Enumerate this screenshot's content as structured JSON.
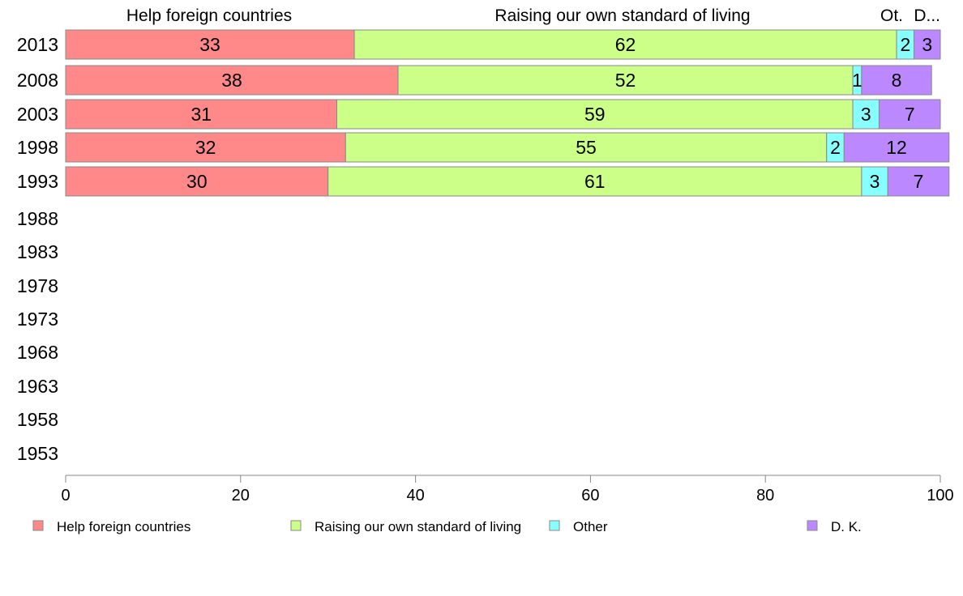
{
  "chart_data": {
    "type": "bar",
    "orientation": "horizontal",
    "stacked": true,
    "column_headers": [
      "Help foreign countries",
      "Raising our own standard of living",
      "Ot.",
      "D..."
    ],
    "categories": [
      "2013",
      "2008",
      "2003",
      "1998",
      "1993",
      "1988",
      "1983",
      "1978",
      "1973",
      "1968",
      "1963",
      "1958",
      "1953"
    ],
    "series": [
      {
        "name": "Help foreign countries",
        "color": "#ff8888",
        "values": [
          33,
          38,
          31,
          32,
          30,
          null,
          null,
          null,
          null,
          null,
          null,
          null,
          null
        ]
      },
      {
        "name": "Raising our own standard of living",
        "color": "#ccff88",
        "values": [
          62,
          52,
          59,
          55,
          61,
          null,
          null,
          null,
          null,
          null,
          null,
          null,
          null
        ]
      },
      {
        "name": "Other",
        "color": "#88ffff",
        "values": [
          2,
          1,
          3,
          2,
          3,
          null,
          null,
          null,
          null,
          null,
          null,
          null,
          null
        ]
      },
      {
        "name": "D. K.",
        "color": "#bb88ff",
        "values": [
          3,
          8,
          7,
          12,
          7,
          null,
          null,
          null,
          null,
          null,
          null,
          null,
          null
        ]
      }
    ],
    "xlim": [
      0,
      100
    ],
    "xticks": [
      "0",
      "20",
      "40",
      "60",
      "80",
      "100"
    ],
    "grid": false,
    "legend_position": "bottom"
  }
}
